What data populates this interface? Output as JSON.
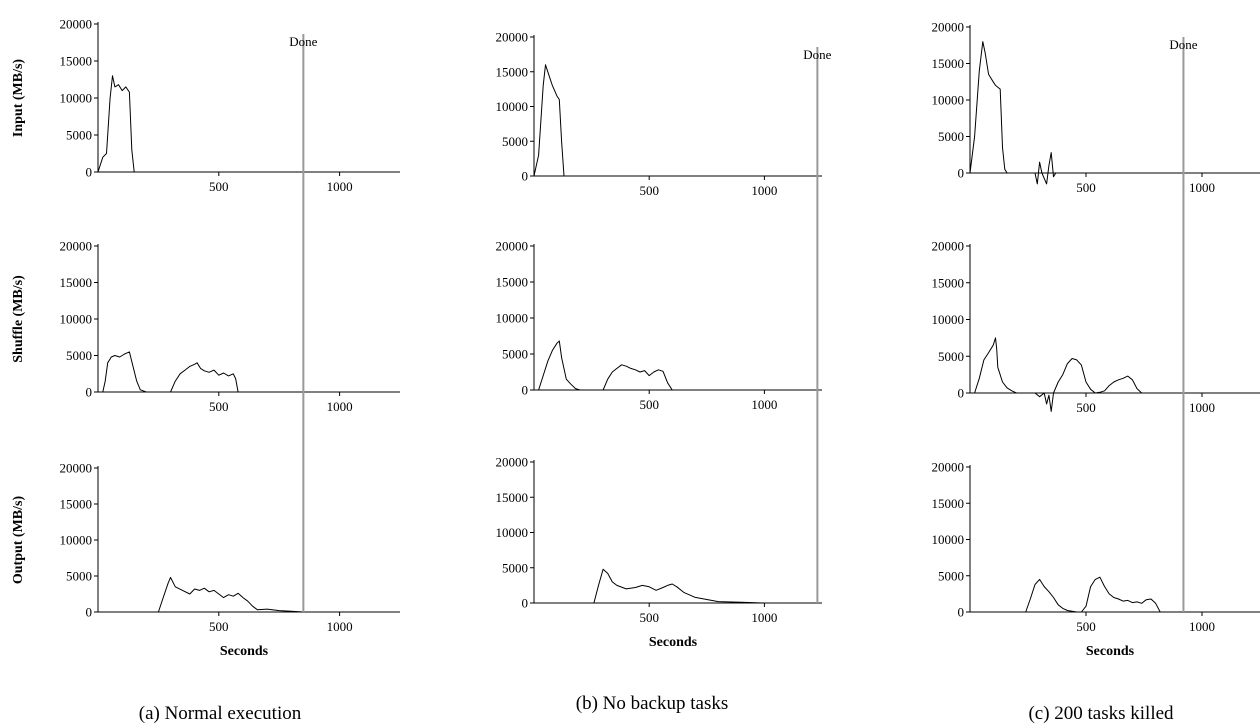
{
  "figure": {
    "panel_captions": [
      "(a) Normal execution",
      "(b) No backup tasks",
      "(c) 200 tasks killed"
    ],
    "row_labels": [
      "Input (MB/s)",
      "Shuffle (MB/s)",
      "Output (MB/s)"
    ],
    "xlabel": "Seconds",
    "done_label": "Done"
  },
  "chart_data": [
    {
      "type": "line",
      "title": "(a) Normal execution",
      "ylabel": "Input (MB/s)",
      "xlabel": "",
      "xlim": [
        0,
        1250
      ],
      "ylim": [
        0,
        20000
      ],
      "xticks": [
        500,
        1000
      ],
      "yticks": [
        0,
        5000,
        10000,
        15000,
        20000
      ],
      "done_x": 850,
      "done_label": "Done",
      "series": [
        {
          "x": [
            0,
            20,
            35,
            50,
            60,
            70,
            85,
            100,
            115,
            130,
            140,
            150,
            160
          ],
          "y": [
            0,
            2000,
            2500,
            10000,
            13000,
            11500,
            11800,
            11000,
            11500,
            10800,
            3000,
            0,
            0
          ]
        }
      ]
    },
    {
      "type": "line",
      "title": "(a) Normal execution",
      "ylabel": "Shuffle (MB/s)",
      "xlabel": "",
      "xlim": [
        0,
        1250
      ],
      "ylim": [
        0,
        20000
      ],
      "xticks": [
        500,
        1000
      ],
      "yticks": [
        0,
        5000,
        10000,
        15000,
        20000
      ],
      "done_x": 850,
      "series": [
        {
          "x": [
            0,
            20,
            30,
            40,
            55,
            70,
            90,
            110,
            130,
            145,
            160,
            175,
            200,
            300,
            320,
            340,
            360,
            380,
            400,
            410,
            425,
            440,
            460,
            480,
            500,
            520,
            540,
            560,
            570,
            580,
            700,
            850,
            1250
          ],
          "y": [
            0,
            0,
            1500,
            4000,
            4800,
            5000,
            4800,
            5200,
            5500,
            3500,
            1500,
            300,
            0,
            0,
            1500,
            2500,
            3000,
            3500,
            3800,
            4000,
            3200,
            2900,
            2700,
            3000,
            2300,
            2600,
            2200,
            2500,
            1800,
            0,
            0,
            0,
            0
          ]
        }
      ]
    },
    {
      "type": "line",
      "title": "(a) Normal execution",
      "ylabel": "Output (MB/s)",
      "xlabel": "Seconds",
      "xlim": [
        0,
        1250
      ],
      "ylim": [
        0,
        20000
      ],
      "xticks": [
        500,
        1000
      ],
      "yticks": [
        0,
        5000,
        10000,
        15000,
        20000
      ],
      "done_x": 850,
      "series": [
        {
          "x": [
            0,
            250,
            270,
            290,
            300,
            320,
            350,
            380,
            400,
            420,
            440,
            460,
            480,
            500,
            520,
            540,
            560,
            580,
            600,
            620,
            640,
            660,
            700,
            750,
            800,
            850
          ],
          "y": [
            0,
            0,
            2000,
            4000,
            4800,
            3500,
            3000,
            2500,
            3200,
            3000,
            3300,
            2800,
            3000,
            2500,
            2000,
            2400,
            2200,
            2600,
            2000,
            1500,
            800,
            300,
            400,
            200,
            100,
            0
          ]
        }
      ]
    },
    {
      "type": "line",
      "title": "(b) No backup tasks",
      "ylabel": "",
      "xlabel": "",
      "xlim": [
        0,
        1250
      ],
      "ylim": [
        0,
        20000
      ],
      "xticks": [
        500,
        1000
      ],
      "yticks": [
        0,
        5000,
        10000,
        15000,
        20000
      ],
      "done_x": 1230,
      "done_label": "Done",
      "series": [
        {
          "x": [
            0,
            20,
            40,
            50,
            60,
            80,
            100,
            110,
            120,
            130
          ],
          "y": [
            0,
            3000,
            13000,
            16000,
            15000,
            13000,
            11500,
            11000,
            5000,
            0
          ]
        }
      ]
    },
    {
      "type": "line",
      "title": "(b) No backup tasks",
      "ylabel": "",
      "xlabel": "",
      "xlim": [
        0,
        1250
      ],
      "ylim": [
        0,
        20000
      ],
      "xticks": [
        500,
        1000
      ],
      "yticks": [
        0,
        5000,
        10000,
        15000,
        20000
      ],
      "done_x": 1230,
      "series": [
        {
          "x": [
            0,
            20,
            40,
            60,
            80,
            100,
            110,
            120,
            140,
            160,
            180,
            200,
            300,
            320,
            340,
            360,
            380,
            400,
            420,
            440,
            460,
            480,
            500,
            520,
            540,
            560,
            580,
            600,
            1230
          ],
          "y": [
            0,
            0,
            2000,
            4000,
            5500,
            6500,
            6800,
            4500,
            1500,
            800,
            200,
            0,
            0,
            1500,
            2500,
            3000,
            3500,
            3300,
            3000,
            2800,
            2500,
            2700,
            2000,
            2500,
            2800,
            2600,
            1000,
            0,
            0
          ]
        }
      ]
    },
    {
      "type": "line",
      "title": "(b) No backup tasks",
      "ylabel": "",
      "xlabel": "Seconds",
      "xlim": [
        0,
        1250
      ],
      "ylim": [
        0,
        20000
      ],
      "xticks": [
        500,
        1000
      ],
      "yticks": [
        0,
        5000,
        10000,
        15000,
        20000
      ],
      "done_x": 1230,
      "series": [
        {
          "x": [
            0,
            260,
            280,
            300,
            320,
            340,
            360,
            400,
            440,
            470,
            500,
            530,
            560,
            580,
            600,
            620,
            650,
            700,
            750,
            800,
            900,
            1000,
            1230
          ],
          "y": [
            0,
            0,
            2500,
            4800,
            4200,
            3000,
            2500,
            2000,
            2200,
            2500,
            2300,
            1800,
            2200,
            2500,
            2700,
            2300,
            1500,
            800,
            500,
            200,
            100,
            0,
            0
          ]
        }
      ]
    },
    {
      "type": "line",
      "title": "(c) 200 tasks killed",
      "ylabel": "",
      "xlabel": "",
      "xlim": [
        0,
        1250
      ],
      "ylim": [
        0,
        20000
      ],
      "xticks": [
        500,
        1000
      ],
      "yticks": [
        0,
        5000,
        10000,
        15000,
        20000
      ],
      "done_x": 920,
      "done_label": "Done",
      "series": [
        {
          "x": [
            0,
            20,
            40,
            55,
            65,
            80,
            90,
            100,
            110,
            130,
            140,
            150,
            160,
            280,
            290,
            300,
            310,
            330,
            340,
            350,
            360,
            370,
            380,
            400,
            1250
          ],
          "y": [
            0,
            5000,
            14000,
            18000,
            16500,
            13500,
            13000,
            12500,
            12000,
            11500,
            3500,
            500,
            0,
            0,
            -1500,
            1500,
            0,
            -1500,
            1000,
            2800,
            -500,
            0,
            0,
            0,
            0
          ]
        }
      ]
    },
    {
      "type": "line",
      "title": "(c) 200 tasks killed",
      "ylabel": "",
      "xlabel": "",
      "xlim": [
        0,
        1250
      ],
      "ylim": [
        0,
        20000
      ],
      "xticks": [
        500,
        1000
      ],
      "yticks": [
        0,
        5000,
        10000,
        15000,
        20000
      ],
      "done_x": 920,
      "series": [
        {
          "x": [
            0,
            20,
            40,
            60,
            80,
            100,
            110,
            115,
            120,
            140,
            160,
            180,
            200,
            220,
            280,
            300,
            320,
            330,
            340,
            350,
            360,
            380,
            400,
            420,
            440,
            460,
            480,
            500,
            520,
            540,
            560,
            580,
            600,
            620,
            640,
            660,
            680,
            700,
            720,
            740,
            1250
          ],
          "y": [
            0,
            0,
            2000,
            4500,
            5500,
            6500,
            7500,
            6000,
            3500,
            1500,
            700,
            300,
            0,
            0,
            0,
            -500,
            0,
            -1500,
            -300,
            -2500,
            0,
            1500,
            2500,
            4000,
            4700,
            4500,
            3800,
            1500,
            500,
            0,
            100,
            300,
            1000,
            1500,
            1800,
            2000,
            2300,
            1800,
            600,
            0,
            0
          ]
        }
      ]
    },
    {
      "type": "line",
      "title": "(c) 200 tasks killed",
      "ylabel": "",
      "xlabel": "Seconds",
      "xlim": [
        0,
        1250
      ],
      "ylim": [
        0,
        20000
      ],
      "xticks": [
        500,
        1000
      ],
      "yticks": [
        0,
        5000,
        10000,
        15000,
        20000
      ],
      "done_x": 920,
      "series": [
        {
          "x": [
            0,
            240,
            260,
            280,
            300,
            320,
            340,
            360,
            380,
            400,
            420,
            440,
            460,
            480,
            500,
            520,
            540,
            560,
            580,
            600,
            620,
            640,
            660,
            680,
            700,
            720,
            740,
            760,
            780,
            800,
            820,
            920
          ],
          "y": [
            0,
            0,
            1800,
            3800,
            4500,
            3500,
            2800,
            2000,
            1000,
            500,
            200,
            100,
            0,
            0,
            800,
            3500,
            4500,
            4800,
            3500,
            2500,
            2000,
            1800,
            1500,
            1600,
            1300,
            1400,
            1200,
            1700,
            1800,
            1200,
            0,
            0
          ]
        }
      ]
    }
  ]
}
